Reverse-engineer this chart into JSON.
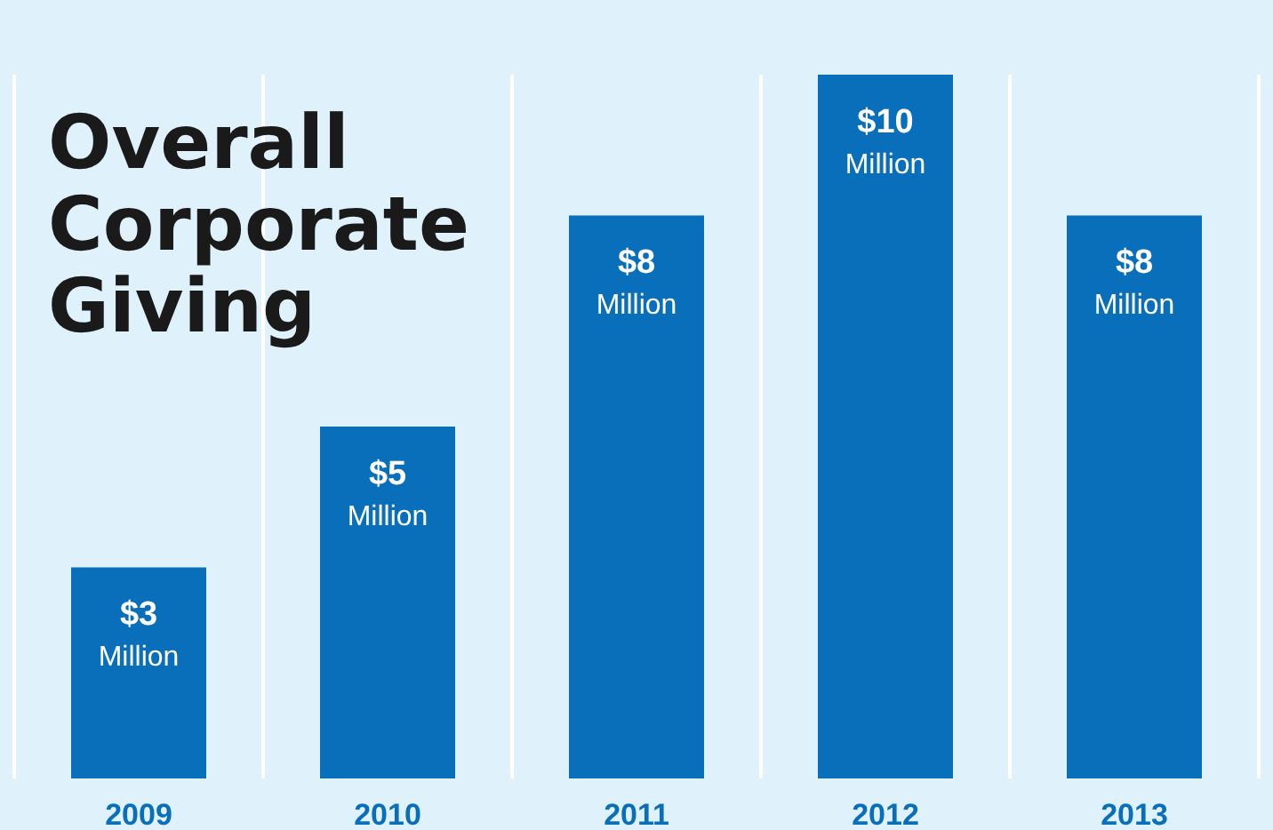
{
  "chart_data": {
    "type": "bar",
    "title": "Overall Corporate Giving",
    "categories": [
      "2009",
      "2010",
      "2011",
      "2012",
      "2013"
    ],
    "values": [
      3,
      5,
      8,
      10,
      8
    ],
    "color": "#0a6fba",
    "value_labels": [
      "$3 Million",
      "$5 Million",
      "$8 Million",
      "$10 Million",
      "$8 Million"
    ]
  }
}
